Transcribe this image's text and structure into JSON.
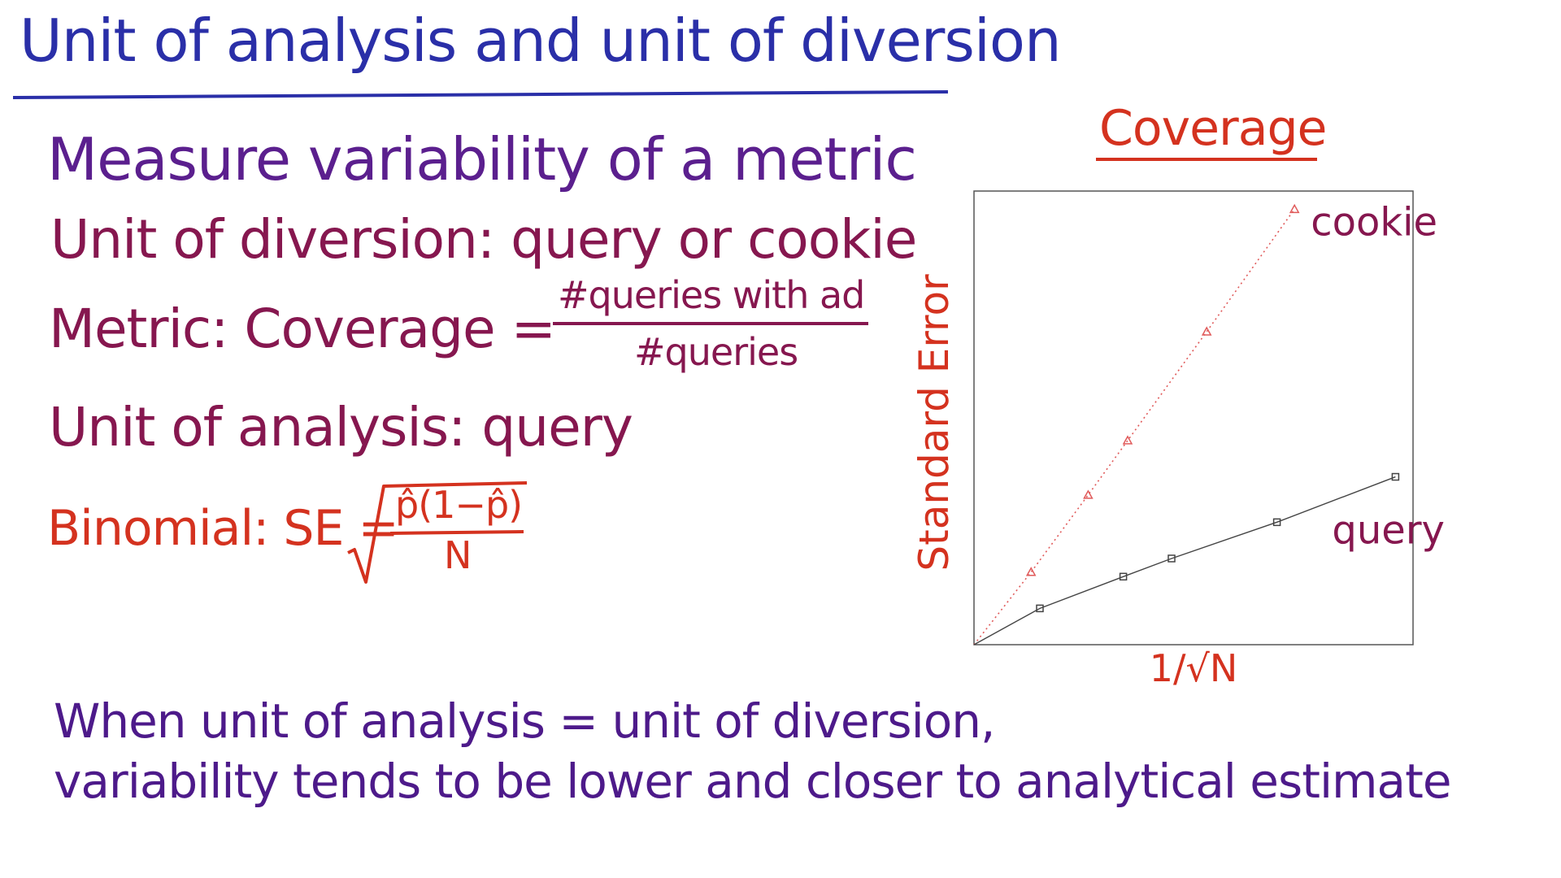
{
  "title": "Unit of analysis and unit of diversion",
  "lines": {
    "measure": "Measure variability of a metric",
    "diversion": "Unit of diversion: query or cookie",
    "metric_prefix": "Metric: Coverage =",
    "metric_numerator": "#queries with ad",
    "metric_denominator": "#queries",
    "analysis": "Unit of analysis: query",
    "binomial_prefix": "Binomial: SE =",
    "se_numerator": "p̂(1−p̂)",
    "se_denominator": "N"
  },
  "conclusion": {
    "line1": "When unit of analysis = unit of diversion,",
    "line2": "variability tends to be lower and closer to analytical estimate"
  },
  "colors": {
    "title": "#2a2fa8",
    "body_purple": "#5b1f8e",
    "body_magenta": "#86174f",
    "red": "#d4321f",
    "query_series": "#444444",
    "cookie_series": "#e05a5a"
  },
  "chart_data": {
    "type": "scatter",
    "title": "Coverage",
    "xlabel": "1/√N",
    "ylabel": "Standard Error",
    "xlim": [
      0,
      1
    ],
    "ylim": [
      0,
      1
    ],
    "ticks_shown": false,
    "grid": false,
    "series": [
      {
        "name": "cookie",
        "marker": "triangle",
        "line": "dotted",
        "x": [
          0.13,
          0.26,
          0.35,
          0.53,
          0.73
        ],
        "y": [
          0.16,
          0.33,
          0.45,
          0.69,
          0.96
        ]
      },
      {
        "name": "query",
        "marker": "square",
        "line": "solid",
        "x": [
          0.15,
          0.34,
          0.45,
          0.69,
          0.96
        ],
        "y": [
          0.08,
          0.15,
          0.19,
          0.27,
          0.37
        ]
      }
    ]
  }
}
